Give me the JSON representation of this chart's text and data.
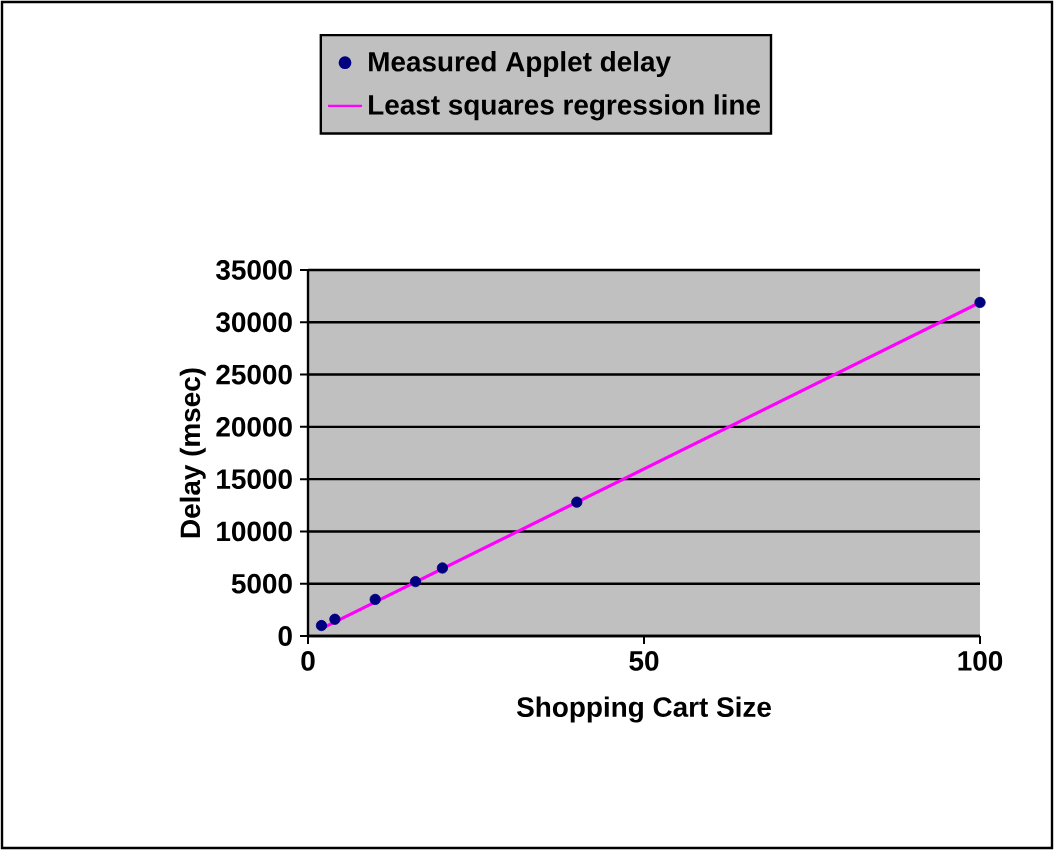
{
  "chart_data": {
    "type": "scatter",
    "xlabel": "Shopping Cart Size",
    "ylabel": "Delay (msec)",
    "series": [
      {
        "name": "Measured Applet delay",
        "color": "#000080",
        "marker": "circle",
        "x": [
          2,
          4,
          10,
          16,
          20,
          40,
          100
        ],
        "values": [
          1000,
          1600,
          3500,
          5200,
          6500,
          12800,
          31900
        ]
      },
      {
        "name": "Least squares regression line",
        "type": "line",
        "color": "#ff00ff",
        "marker": "none",
        "x": [
          2,
          100
        ],
        "values": [
          700,
          31900
        ]
      }
    ],
    "xlim": [
      0,
      100
    ],
    "xticks": [
      0,
      50,
      100
    ],
    "ylim": [
      0,
      35000
    ],
    "yticks": [
      0,
      5000,
      10000,
      15000,
      20000,
      25000,
      30000,
      35000
    ],
    "grid": "y",
    "legend": "top"
  }
}
